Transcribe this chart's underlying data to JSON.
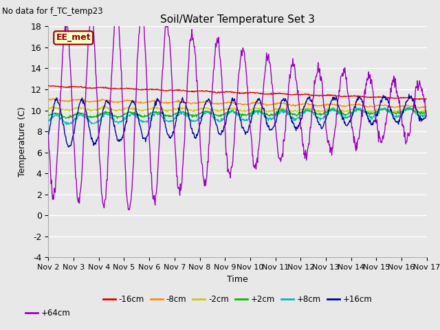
{
  "title": "Soil/Water Temperature Set 3",
  "subtitle": "No data for f_TC_temp23",
  "xlabel": "Time",
  "ylabel": "Temperature (C)",
  "ylim": [
    -4,
    18
  ],
  "yticks": [
    -4,
    -2,
    0,
    2,
    4,
    6,
    8,
    10,
    12,
    14,
    16,
    18
  ],
  "xtick_labels": [
    "Nov 2",
    "Nov 3",
    "Nov 4",
    "Nov 5",
    "Nov 6",
    "Nov 7",
    "Nov 8",
    "Nov 9",
    "Nov 10",
    "Nov 11",
    "Nov 12",
    "Nov 13",
    "Nov 14",
    "Nov 15",
    "Nov 16",
    "Nov 17"
  ],
  "annotation_box": "EE_met",
  "annotation_color": "#8B0000",
  "annotation_bg": "#FFFFCC",
  "plot_bg": "#E8E8E8",
  "fig_bg": "#E8E8E8",
  "grid_color": "#FFFFFF",
  "series": [
    {
      "label": "-16cm",
      "color": "#DD0000"
    },
    {
      "label": "-8cm",
      "color": "#FF8C00"
    },
    {
      "label": "-2cm",
      "color": "#CCCC00"
    },
    {
      "label": "+2cm",
      "color": "#00BB00"
    },
    {
      "label": "+8cm",
      "color": "#00BBBB"
    },
    {
      "label": "+16cm",
      "color": "#000099"
    },
    {
      "label": "+64cm",
      "color": "#9900BB"
    }
  ],
  "n_days": 15
}
